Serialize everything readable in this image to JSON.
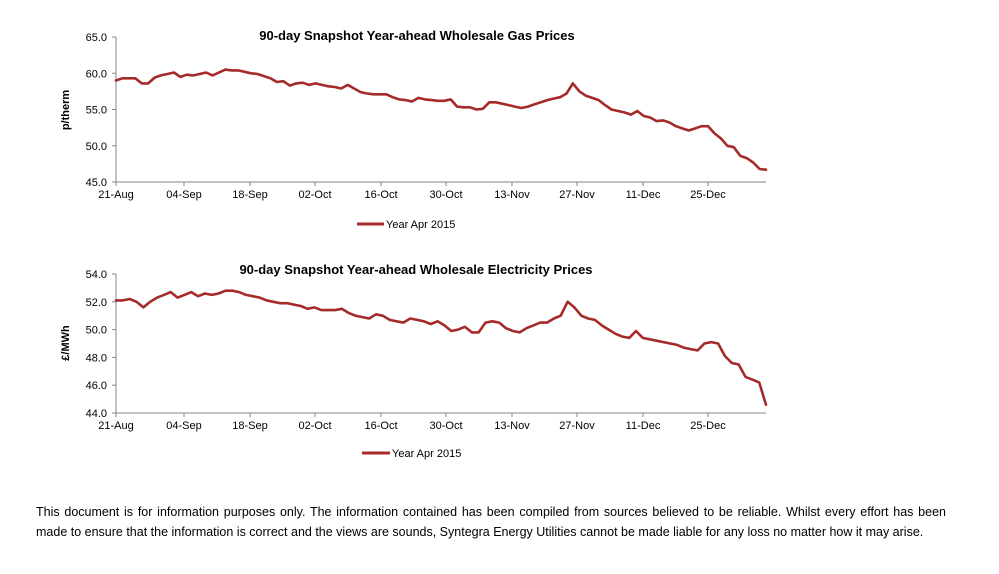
{
  "colors": {
    "series": "#A52A2A",
    "axis": "#868686"
  },
  "chart_data": [
    {
      "type": "line",
      "title": "90-day Snapshot Year-ahead Wholesale Gas Prices",
      "ylabel": "p/therm",
      "xlabel": "",
      "ylim": [
        45.0,
        65.0
      ],
      "y_ticks": [
        "45.0",
        "50.0",
        "55.0",
        "60.0",
        "65.0"
      ],
      "x_ticks": [
        "21-Aug",
        "04-Sep",
        "18-Sep",
        "02-Oct",
        "16-Oct",
        "30-Oct",
        "13-Nov",
        "27-Nov",
        "11-Dec",
        "25-Dec"
      ],
      "grid": false,
      "legend_position": "bottom",
      "series": [
        {
          "name": "Year Apr 2015",
          "values": [
            59.0,
            59.3,
            59.3,
            59.3,
            58.6,
            58.6,
            59.4,
            59.7,
            59.9,
            60.1,
            59.5,
            59.8,
            59.7,
            59.9,
            60.1,
            59.7,
            60.1,
            60.5,
            60.4,
            60.4,
            60.2,
            60.0,
            59.9,
            59.6,
            59.3,
            58.8,
            58.9,
            58.3,
            58.6,
            58.7,
            58.4,
            58.6,
            58.4,
            58.2,
            58.1,
            57.9,
            58.4,
            57.9,
            57.4,
            57.2,
            57.1,
            57.1,
            57.1,
            56.7,
            56.4,
            56.3,
            56.1,
            56.6,
            56.4,
            56.3,
            56.2,
            56.2,
            56.4,
            55.4,
            55.3,
            55.3,
            55.0,
            55.1,
            56.0,
            56.0,
            55.8,
            55.6,
            55.4,
            55.2,
            55.4,
            55.7,
            56.0,
            56.3,
            56.5,
            56.7,
            57.2,
            58.6,
            57.5,
            56.9,
            56.6,
            56.3,
            55.6,
            55.0,
            54.8,
            54.6,
            54.3,
            54.8,
            54.1,
            53.9,
            53.4,
            53.5,
            53.2,
            52.7,
            52.4,
            52.1,
            52.4,
            52.7,
            52.7,
            51.7,
            51.0,
            50.0,
            49.8,
            48.6,
            48.3,
            47.7,
            46.8,
            46.7
          ]
        }
      ]
    },
    {
      "type": "line",
      "title": "90-day Snapshot Year-ahead Wholesale Electricity Prices",
      "ylabel": "£/MWh",
      "xlabel": "",
      "ylim": [
        44.0,
        54.0
      ],
      "y_ticks": [
        "44.0",
        "46.0",
        "48.0",
        "50.0",
        "52.0",
        "54.0"
      ],
      "x_ticks": [
        "21-Aug",
        "04-Sep",
        "18-Sep",
        "02-Oct",
        "16-Oct",
        "30-Oct",
        "13-Nov",
        "27-Nov",
        "11-Dec",
        "25-Dec"
      ],
      "grid": false,
      "legend_position": "bottom",
      "series": [
        {
          "name": "Year Apr 2015",
          "values": [
            52.1,
            52.1,
            52.2,
            52.0,
            51.6,
            52.0,
            52.3,
            52.5,
            52.7,
            52.3,
            52.5,
            52.7,
            52.4,
            52.6,
            52.5,
            52.6,
            52.8,
            52.8,
            52.7,
            52.5,
            52.4,
            52.3,
            52.1,
            52.0,
            51.9,
            51.9,
            51.8,
            51.7,
            51.5,
            51.6,
            51.4,
            51.4,
            51.4,
            51.5,
            51.2,
            51.0,
            50.9,
            50.8,
            51.1,
            51.0,
            50.7,
            50.6,
            50.5,
            50.8,
            50.7,
            50.6,
            50.4,
            50.6,
            50.3,
            49.9,
            50.0,
            50.2,
            49.8,
            49.8,
            50.5,
            50.6,
            50.5,
            50.1,
            49.9,
            49.8,
            50.1,
            50.3,
            50.5,
            50.5,
            50.8,
            51.0,
            52.0,
            51.6,
            51.0,
            50.8,
            50.7,
            50.3,
            50.0,
            49.7,
            49.5,
            49.4,
            49.9,
            49.4,
            49.3,
            49.2,
            49.1,
            49.0,
            48.9,
            48.7,
            48.6,
            48.5,
            49.0,
            49.1,
            49.0,
            48.1,
            47.6,
            47.5,
            46.6,
            46.4,
            46.2,
            44.6
          ]
        }
      ]
    }
  ],
  "disclaimer": "This document is for information purposes only. The information contained has been compiled from sources believed to be reliable. Whilst every effort has been made to ensure that the information is correct and the views are sounds, Syntegra Energy Utilities cannot be made liable for any loss no matter how it may arise."
}
